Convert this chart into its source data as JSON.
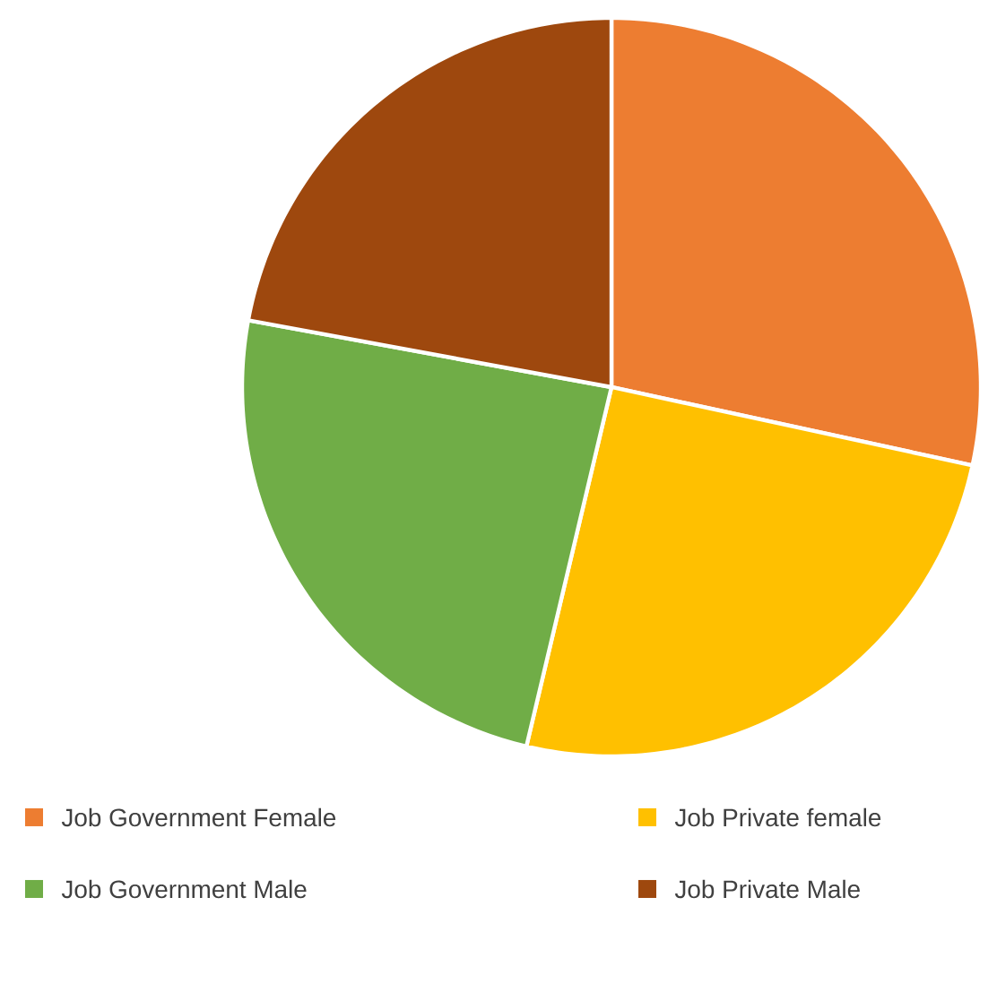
{
  "chart_data": {
    "type": "pie",
    "categories": [
      "Job Government Female",
      "Job Private female",
      "Job Government Male",
      "Job Private Male"
    ],
    "values": [
      28.4,
      25.3,
      24.2,
      22.1
    ],
    "colors": [
      "#ed7d31",
      "#ffc000",
      "#70ad47",
      "#9e480e"
    ],
    "legend": "bottom"
  }
}
